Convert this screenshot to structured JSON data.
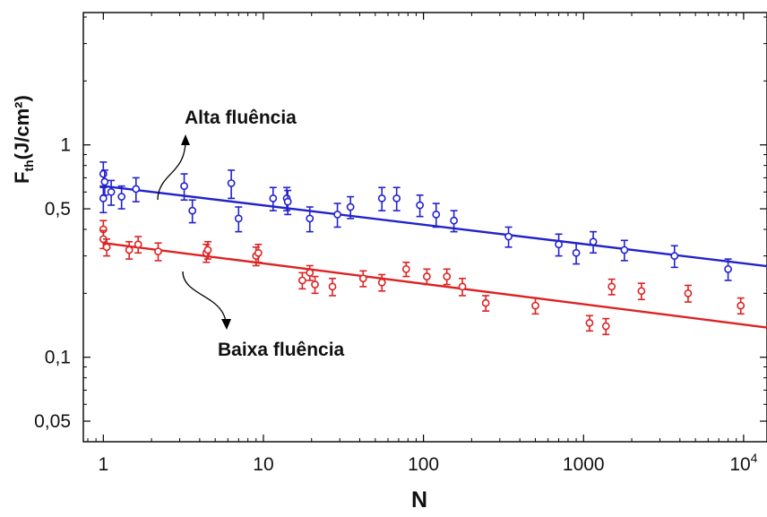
{
  "chart_data": {
    "type": "scatter",
    "xscale": "log",
    "yscale": "log",
    "xlim": [
      0.75,
      14000
    ],
    "ylim": [
      0.04,
      4.2
    ],
    "xlabel": "N",
    "ylabel": {
      "main": "F",
      "sub": "th",
      "rest": "(J/cm²)"
    },
    "x_ticks": [
      {
        "value": 1,
        "label": "1"
      },
      {
        "value": 10,
        "label": "10"
      },
      {
        "value": 100,
        "label": "100"
      },
      {
        "value": 1000,
        "label": "1000"
      },
      {
        "value": 10000,
        "label": "10",
        "sup": "4"
      }
    ],
    "y_ticks": [
      {
        "value": 0.05,
        "label": "0,05"
      },
      {
        "value": 0.1,
        "label": "0,1"
      },
      {
        "value": 0.5,
        "label": "0,5"
      },
      {
        "value": 1,
        "label": "1"
      }
    ],
    "grid": false,
    "annotations": [
      {
        "text": "Alta fluência",
        "series": 0
      },
      {
        "text": "Baixa fluência",
        "series": 1
      }
    ],
    "series": [
      {
        "color": "#2222cc",
        "fit": {
          "x0": 1,
          "y0": 0.64,
          "slope": -0.091
        },
        "points": [
          {
            "x": 1.0,
            "y": 0.73,
            "err": 0.1
          },
          {
            "x": 1.0,
            "y": 0.56,
            "err": 0.08
          },
          {
            "x": 1.02,
            "y": 0.67,
            "err": 0.09
          },
          {
            "x": 1.12,
            "y": 0.6,
            "err": 0.08
          },
          {
            "x": 1.3,
            "y": 0.57,
            "err": 0.07
          },
          {
            "x": 1.6,
            "y": 0.62,
            "err": 0.08
          },
          {
            "x": 3.2,
            "y": 0.64,
            "err": 0.09
          },
          {
            "x": 3.6,
            "y": 0.49,
            "err": 0.06
          },
          {
            "x": 6.3,
            "y": 0.66,
            "err": 0.1
          },
          {
            "x": 7.0,
            "y": 0.45,
            "err": 0.06
          },
          {
            "x": 11.5,
            "y": 0.56,
            "err": 0.07
          },
          {
            "x": 14.0,
            "y": 0.56,
            "err": 0.07
          },
          {
            "x": 14.2,
            "y": 0.54,
            "err": 0.07
          },
          {
            "x": 19.5,
            "y": 0.45,
            "err": 0.06
          },
          {
            "x": 29.0,
            "y": 0.47,
            "err": 0.06
          },
          {
            "x": 35.0,
            "y": 0.51,
            "err": 0.06
          },
          {
            "x": 55.0,
            "y": 0.56,
            "err": 0.07
          },
          {
            "x": 68.0,
            "y": 0.56,
            "err": 0.07
          },
          {
            "x": 95.0,
            "y": 0.52,
            "err": 0.06
          },
          {
            "x": 120.0,
            "y": 0.47,
            "err": 0.06
          },
          {
            "x": 155.0,
            "y": 0.44,
            "err": 0.05
          },
          {
            "x": 340.0,
            "y": 0.37,
            "err": 0.04
          },
          {
            "x": 700.0,
            "y": 0.34,
            "err": 0.04
          },
          {
            "x": 900.0,
            "y": 0.31,
            "err": 0.035
          },
          {
            "x": 1150.0,
            "y": 0.35,
            "err": 0.04
          },
          {
            "x": 1800.0,
            "y": 0.32,
            "err": 0.035
          },
          {
            "x": 3700.0,
            "y": 0.3,
            "err": 0.035
          },
          {
            "x": 8000.0,
            "y": 0.26,
            "err": 0.03
          }
        ]
      },
      {
        "color": "#dd2222",
        "fit": {
          "x0": 1,
          "y0": 0.345,
          "slope": -0.096
        },
        "points": [
          {
            "x": 1.0,
            "y": 0.4,
            "err": 0.04
          },
          {
            "x": 1.0,
            "y": 0.36,
            "err": 0.035
          },
          {
            "x": 1.05,
            "y": 0.33,
            "err": 0.03
          },
          {
            "x": 1.45,
            "y": 0.32,
            "err": 0.03
          },
          {
            "x": 1.65,
            "y": 0.34,
            "err": 0.03
          },
          {
            "x": 2.2,
            "y": 0.315,
            "err": 0.03
          },
          {
            "x": 4.4,
            "y": 0.31,
            "err": 0.03
          },
          {
            "x": 4.5,
            "y": 0.32,
            "err": 0.03
          },
          {
            "x": 9.0,
            "y": 0.3,
            "err": 0.03
          },
          {
            "x": 9.3,
            "y": 0.31,
            "err": 0.03
          },
          {
            "x": 17.5,
            "y": 0.23,
            "err": 0.02
          },
          {
            "x": 19.5,
            "y": 0.25,
            "err": 0.02
          },
          {
            "x": 21.0,
            "y": 0.22,
            "err": 0.02
          },
          {
            "x": 27.0,
            "y": 0.215,
            "err": 0.02
          },
          {
            "x": 42.0,
            "y": 0.235,
            "err": 0.02
          },
          {
            "x": 55.0,
            "y": 0.225,
            "err": 0.02
          },
          {
            "x": 78.0,
            "y": 0.26,
            "err": 0.02
          },
          {
            "x": 105.0,
            "y": 0.24,
            "err": 0.02
          },
          {
            "x": 140.0,
            "y": 0.24,
            "err": 0.02
          },
          {
            "x": 175.0,
            "y": 0.215,
            "err": 0.02
          },
          {
            "x": 245.0,
            "y": 0.18,
            "err": 0.015
          },
          {
            "x": 500.0,
            "y": 0.175,
            "err": 0.015
          },
          {
            "x": 1090.0,
            "y": 0.145,
            "err": 0.012
          },
          {
            "x": 1380.0,
            "y": 0.14,
            "err": 0.012
          },
          {
            "x": 1500.0,
            "y": 0.215,
            "err": 0.018
          },
          {
            "x": 2300.0,
            "y": 0.205,
            "err": 0.018
          },
          {
            "x": 4500.0,
            "y": 0.2,
            "err": 0.018
          },
          {
            "x": 9600.0,
            "y": 0.175,
            "err": 0.015
          }
        ]
      }
    ]
  }
}
